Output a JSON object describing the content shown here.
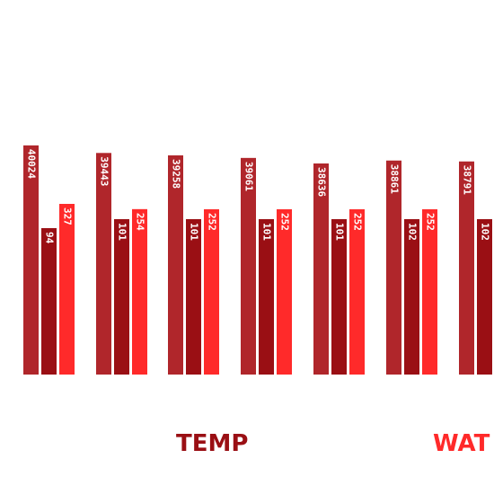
{
  "chart_data": {
    "type": "bar",
    "categories": [
      "",
      "",
      "",
      "",
      "",
      "",
      ""
    ],
    "series": [
      {
        "name": "",
        "color": "#b0262b",
        "values": [
          40024,
          39443,
          39258,
          39061,
          38636,
          38861,
          38791
        ]
      },
      {
        "name": "TEMP",
        "color": "#9a0f14",
        "values": [
          94,
          101,
          101,
          101,
          101,
          102,
          102
        ]
      },
      {
        "name": "WAT",
        "color": "#ff2a2a",
        "values": [
          327,
          254,
          252,
          252,
          252,
          252,
          null
        ]
      }
    ],
    "legend": {
      "placement": "bottom"
    }
  }
}
